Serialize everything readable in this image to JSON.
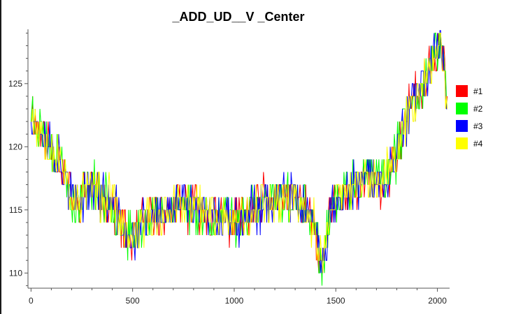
{
  "chart_data": {
    "type": "line",
    "title": "_ADD_UD__V _Center",
    "xlabel": "",
    "ylabel": "",
    "xlim": [
      -15,
      2060
    ],
    "ylim": [
      108.8,
      129.3
    ],
    "x_ticks": [
      0,
      500,
      1000,
      1500,
      2000
    ],
    "y_ticks": [
      110,
      115,
      120,
      125
    ],
    "grid": false,
    "legend_position": "right",
    "x_max": 2050,
    "anchors": [
      [
        0,
        123
      ],
      [
        40,
        121.5
      ],
      [
        80,
        120.5
      ],
      [
        120,
        119.5
      ],
      [
        170,
        118
      ],
      [
        200,
        116
      ],
      [
        230,
        115
      ],
      [
        260,
        116.5
      ],
      [
        300,
        117
      ],
      [
        350,
        116
      ],
      [
        400,
        115.5
      ],
      [
        430,
        114.5
      ],
      [
        470,
        113
      ],
      [
        500,
        112.5
      ],
      [
        540,
        114
      ],
      [
        600,
        114.5
      ],
      [
        650,
        114.8
      ],
      [
        700,
        115.2
      ],
      [
        760,
        115.5
      ],
      [
        820,
        115
      ],
      [
        880,
        114.5
      ],
      [
        940,
        114.5
      ],
      [
        1000,
        114.2
      ],
      [
        1060,
        114.8
      ],
      [
        1120,
        115.3
      ],
      [
        1180,
        115.8
      ],
      [
        1240,
        116
      ],
      [
        1300,
        115.8
      ],
      [
        1350,
        115
      ],
      [
        1390,
        114
      ],
      [
        1410,
        112
      ],
      [
        1430,
        110.5
      ],
      [
        1450,
        112
      ],
      [
        1470,
        115
      ],
      [
        1510,
        116
      ],
      [
        1560,
        116.5
      ],
      [
        1620,
        117
      ],
      [
        1680,
        117.5
      ],
      [
        1720,
        117
      ],
      [
        1760,
        118
      ],
      [
        1800,
        119.5
      ],
      [
        1840,
        122
      ],
      [
        1880,
        123.5
      ],
      [
        1920,
        124.5
      ],
      [
        1960,
        126
      ],
      [
        1990,
        127.5
      ],
      [
        2010,
        128.5
      ],
      [
        2030,
        127.5
      ],
      [
        2040,
        125
      ],
      [
        2050,
        123
      ]
    ],
    "series": [
      {
        "name": "#1",
        "color": "#ff0000",
        "seed": 11
      },
      {
        "name": "#2",
        "color": "#00ff00",
        "seed": 23
      },
      {
        "name": "#3",
        "color": "#0000ff",
        "seed": 37
      },
      {
        "name": "#4",
        "color": "#ffff00",
        "seed": 53
      }
    ]
  }
}
